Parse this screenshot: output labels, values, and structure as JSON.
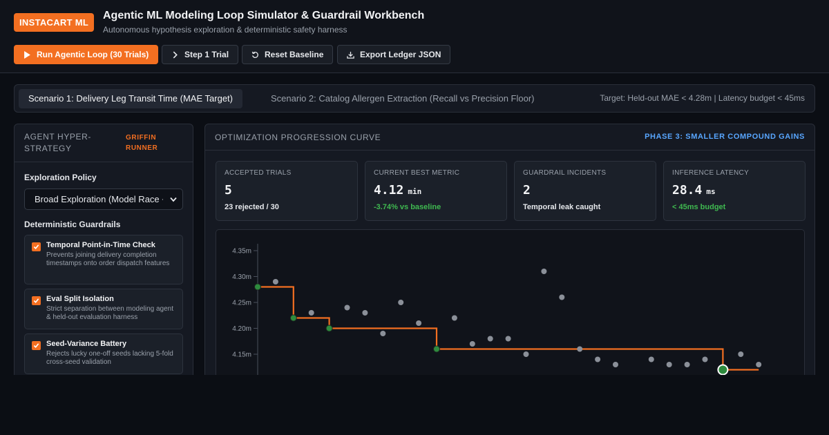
{
  "header": {
    "logo": "INSTACART ML",
    "title": "Agentic ML Modeling Loop Simulator & Guardrail Workbench",
    "subtitle": "Autonomous hypothesis exploration & deterministic safety harness"
  },
  "toolbar": {
    "run_label": "Run Agentic Loop (30 Trials)",
    "step_label": "Step 1 Trial",
    "reset_label": "Reset Baseline",
    "export_label": "Export Ledger JSON"
  },
  "tabs": {
    "scenario1": "Scenario 1: Delivery Leg Transit Time (MAE Target)",
    "scenario2": "Scenario 2: Catalog Allergen Extraction (Recall vs Precision Floor)",
    "target": "Target: Held-out MAE < 4.28m | Latency budget < 45ms"
  },
  "left_panel": {
    "title": "AGENT HYPER-STRATEGY",
    "badge": "GRIFFIN RUNNER",
    "policy_label": "Exploration Policy",
    "policy_value": "Broad Exploration (Model Race + Feature Synthesis)",
    "guardrails_label": "Deterministic Guardrails",
    "guardrails": [
      {
        "title": "Temporal Point-in-Time Check",
        "desc": "Prevents joining delivery completion timestamps onto order dispatch features",
        "checked": true
      },
      {
        "title": "Eval Split Isolation",
        "desc": "Strict separation between modeling agent & held-out evaluation harness",
        "checked": true
      },
      {
        "title": "Seed-Variance Battery",
        "desc": "Rejects lucky one-off seeds lacking 5-fold cross-seed validation",
        "checked": true
      }
    ]
  },
  "right_panel": {
    "title": "OPTIMIZATION PROGRESSION CURVE",
    "phase": "PHASE 3: SMALLER COMPOUND GAINS"
  },
  "kpis": [
    {
      "label": "ACCEPTED TRIALS",
      "value": "5",
      "unit": "",
      "sub": "23 rejected / 30",
      "sub_color": "normal"
    },
    {
      "label": "CURRENT BEST METRIC",
      "value": "4.12",
      "unit": "min",
      "sub": "-3.74% vs baseline",
      "sub_color": "green"
    },
    {
      "label": "GUARDRAIL INCIDENTS",
      "value": "2",
      "unit": "",
      "sub": "Temporal leak caught",
      "sub_color": "normal"
    },
    {
      "label": "INFERENCE LATENCY",
      "value": "28.4",
      "unit": "ms",
      "sub": "< 45ms budget",
      "sub_color": "green"
    }
  ],
  "colors": {
    "accent": "#f36f21",
    "accepted": "#2e8b3e",
    "rejected": "#8b9099",
    "phase": "#58a6ff",
    "positive": "#3fb950"
  },
  "chart_data": {
    "type": "scatter",
    "title": "",
    "xlabel": "",
    "ylabel": "",
    "ylim": [
      4.1,
      4.35
    ],
    "yticks": [
      "4.35m",
      "4.30m",
      "4.25m",
      "4.20m",
      "4.15m"
    ],
    "ytick_values": [
      4.35,
      4.3,
      4.25,
      4.2,
      4.15
    ],
    "trials": [
      {
        "x": 0,
        "y": 4.28,
        "accepted": true
      },
      {
        "x": 1,
        "y": 4.29,
        "accepted": false
      },
      {
        "x": 2,
        "y": 4.22,
        "accepted": true
      },
      {
        "x": 3,
        "y": 4.23,
        "accepted": false
      },
      {
        "x": 4,
        "y": 4.2,
        "accepted": true
      },
      {
        "x": 5,
        "y": 4.24,
        "accepted": false
      },
      {
        "x": 6,
        "y": 4.23,
        "accepted": false
      },
      {
        "x": 7,
        "y": 4.19,
        "accepted": false
      },
      {
        "x": 8,
        "y": 4.25,
        "accepted": false
      },
      {
        "x": 9,
        "y": 4.21,
        "accepted": false
      },
      {
        "x": 10,
        "y": 4.16,
        "accepted": true
      },
      {
        "x": 11,
        "y": 4.22,
        "accepted": false
      },
      {
        "x": 12,
        "y": 4.17,
        "accepted": false
      },
      {
        "x": 13,
        "y": 4.18,
        "accepted": false
      },
      {
        "x": 14,
        "y": 4.18,
        "accepted": false
      },
      {
        "x": 15,
        "y": 4.15,
        "accepted": false
      },
      {
        "x": 16,
        "y": 4.31,
        "accepted": false
      },
      {
        "x": 17,
        "y": 4.26,
        "accepted": false
      },
      {
        "x": 18,
        "y": 4.16,
        "accepted": false
      },
      {
        "x": 19,
        "y": 4.14,
        "accepted": false
      },
      {
        "x": 20,
        "y": 4.13,
        "accepted": false
      },
      {
        "x": 22,
        "y": 4.14,
        "accepted": false
      },
      {
        "x": 23,
        "y": 4.13,
        "accepted": false
      },
      {
        "x": 24,
        "y": 4.13,
        "accepted": false
      },
      {
        "x": 25,
        "y": 4.14,
        "accepted": false
      },
      {
        "x": 26,
        "y": 4.12,
        "accepted": true,
        "current": true
      },
      {
        "x": 27,
        "y": 4.15,
        "accepted": false
      },
      {
        "x": 28,
        "y": 4.13,
        "accepted": false
      }
    ],
    "best_line": [
      [
        0,
        4.28
      ],
      [
        2,
        4.28
      ],
      [
        2,
        4.22
      ],
      [
        4,
        4.22
      ],
      [
        4,
        4.2
      ],
      [
        10,
        4.2
      ],
      [
        10,
        4.16
      ],
      [
        26,
        4.16
      ],
      [
        26,
        4.12
      ],
      [
        28,
        4.12
      ]
    ]
  }
}
